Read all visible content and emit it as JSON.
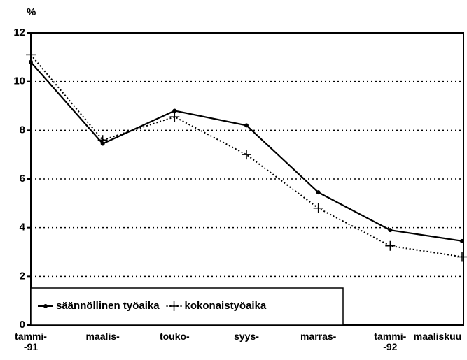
{
  "chart_data": {
    "type": "line",
    "y_label": "%",
    "categories": [
      "tammi-\n-91",
      "maalis-",
      "touko-",
      "syys-",
      "marras-",
      "tammi-\n-92",
      "maaliskuu"
    ],
    "series": [
      {
        "name": "säännöllinen työaika",
        "color": "#000000",
        "style": "solid",
        "marker": "dot",
        "values": [
          10.8,
          7.45,
          8.8,
          8.2,
          5.45,
          3.9,
          3.45
        ]
      },
      {
        "name": "kokonaistyöaika",
        "color": "#000000",
        "style": "dotted",
        "marker": "plus",
        "values": [
          11.1,
          7.6,
          8.55,
          7.0,
          4.8,
          3.25,
          2.8
        ]
      }
    ],
    "ylim": [
      0,
      12
    ],
    "yticks": [
      0,
      2,
      4,
      6,
      8,
      10,
      12
    ],
    "grid": true,
    "legend": "lower left"
  }
}
